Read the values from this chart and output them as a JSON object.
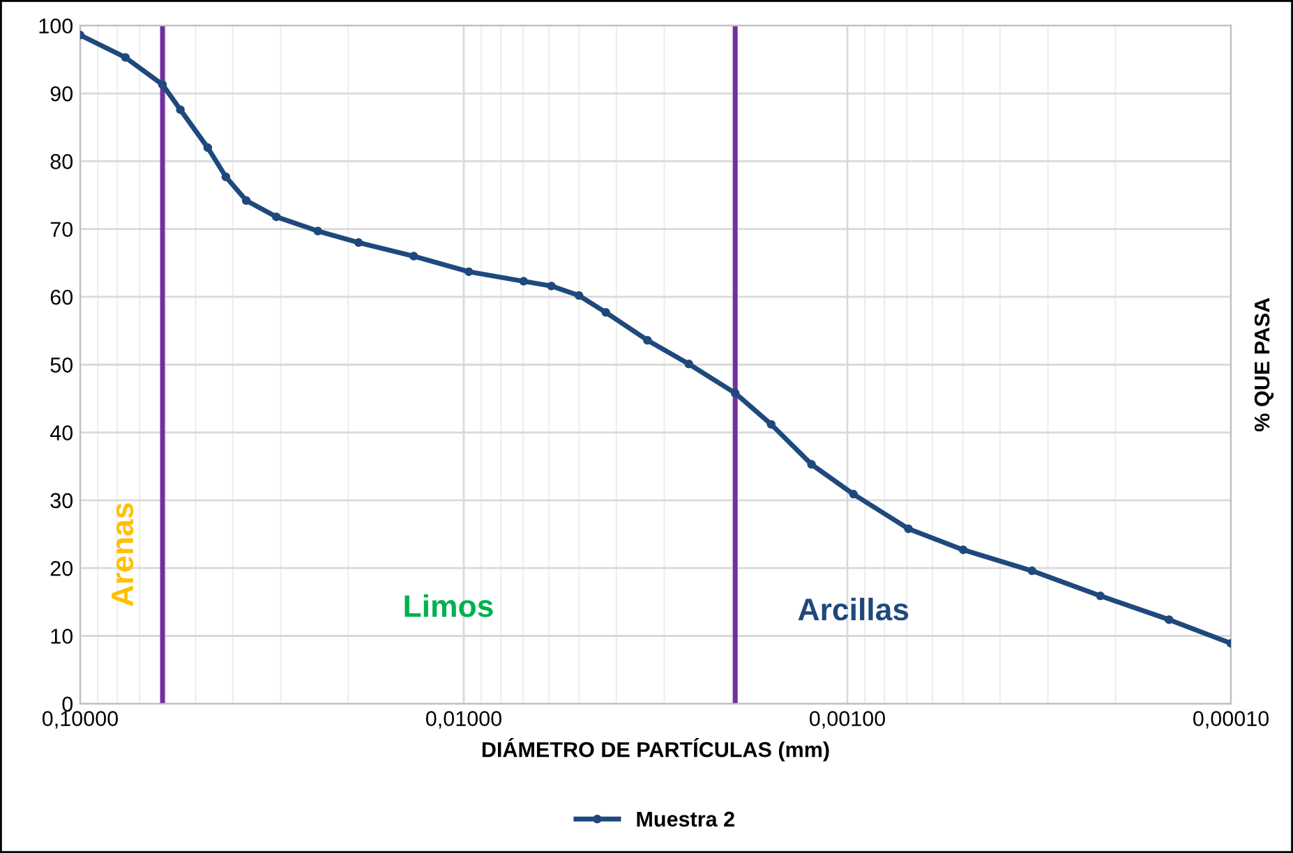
{
  "chart_data": {
    "type": "line",
    "xlabel": "DIÁMETRO DE PARTÍCULAS (mm)",
    "ylabel": "% QUE PASA",
    "series": [
      {
        "name": "Muestra 2",
        "color": "#1f497d",
        "x": [
          0.1,
          0.0762,
          0.061,
          0.0548,
          0.0465,
          0.0417,
          0.0369,
          0.0308,
          0.024,
          0.0188,
          0.0135,
          0.0097,
          0.00698,
          0.00591,
          0.00501,
          0.00426,
          0.00332,
          0.00259,
          0.00196,
          0.00158,
          0.00124,
          0.000964,
          0.000693,
          0.000499,
          0.00033,
          0.000219,
          0.000145,
          0.0001
        ],
        "values": [
          98.6,
          95.3,
          91.3,
          87.6,
          82,
          77.7,
          74.2,
          71.8,
          69.7,
          68,
          66,
          63.7,
          62.3,
          61.6,
          60.2,
          57.7,
          53.6,
          50.1,
          45.8,
          41.2,
          35.3,
          30.9,
          25.8,
          22.7,
          19.6,
          15.9,
          12.4,
          8.9
        ]
      }
    ],
    "log": "x",
    "xlim": [
      0.1,
      0.0001
    ],
    "xticks": [
      {
        "value": 0.1,
        "label": "0,10000"
      },
      {
        "value": 0.01,
        "label": "0,01000"
      },
      {
        "value": 0.001,
        "label": "0,00100"
      },
      {
        "value": 0.0001,
        "label": "0,00010"
      }
    ],
    "ylim": [
      0,
      100
    ],
    "yticks": [
      0,
      10,
      20,
      30,
      40,
      50,
      60,
      70,
      80,
      90,
      100
    ],
    "ref_lines": [
      {
        "axis": "x",
        "value": 0.061,
        "color": "#7030a0"
      },
      {
        "axis": "x",
        "value": 0.00196,
        "color": "#7030a0"
      }
    ],
    "annotations": [
      "Arenas",
      "Limos",
      "Arcillas"
    ],
    "grid": true,
    "legend": "bottom",
    "marker": "circle",
    "line_style": "solid"
  }
}
